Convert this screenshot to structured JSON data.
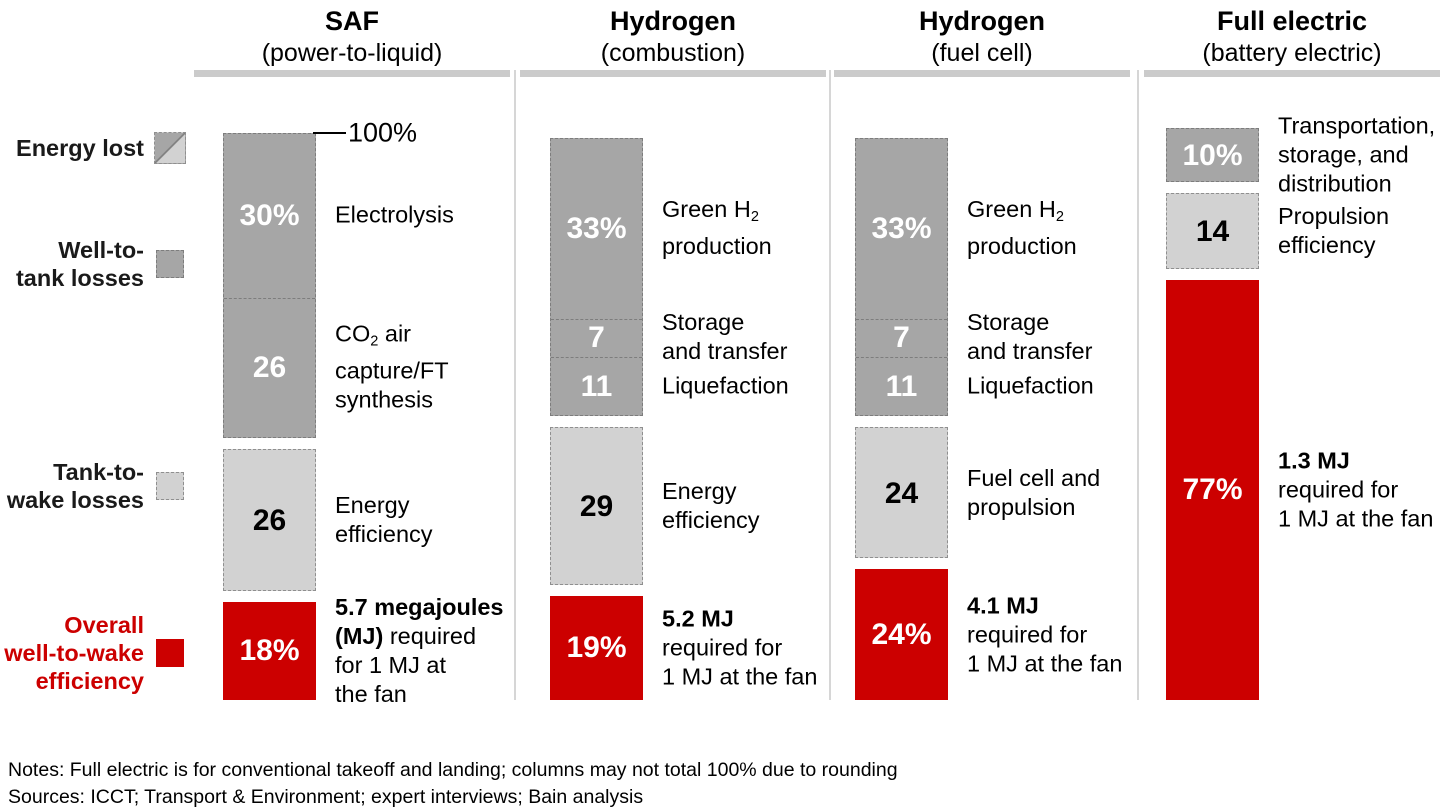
{
  "colors": {
    "well_to_tank_gray": "#a6a6a6",
    "tank_to_wake_gray": "#d2d2d2",
    "overall_red": "#cc0000",
    "header_rule_gray": "#cbcbcb",
    "divider_gray": "#d6d6d6"
  },
  "legend": [
    {
      "name": "energy-lost",
      "swatch": "split",
      "lines": [
        "Energy lost"
      ]
    },
    {
      "name": "well-to-tank-losses",
      "swatch": "dark",
      "lines": [
        "Well-to-",
        "tank losses"
      ]
    },
    {
      "name": "tank-to-wake-losses",
      "swatch": "light",
      "lines": [
        "Tank-to-",
        "wake losses"
      ]
    },
    {
      "name": "overall-well-to-wake-efficiency",
      "swatch": "red",
      "red_text": true,
      "lines": [
        "Overall",
        "well-to-wake",
        "efficiency"
      ]
    }
  ],
  "chart_data": {
    "type": "bar",
    "subtype": "stacked-energy-loss-waterfall",
    "unit": "% of input energy (columns read top to bottom from 100%)",
    "annotation_100": "100%",
    "legend_roles": [
      "Energy lost",
      "Well-to-tank losses",
      "Tank-to-wake losses",
      "Overall well-to-wake efficiency"
    ],
    "columns": [
      {
        "title": "SAF",
        "subtitle": "(power-to-liquid)",
        "show_100_marker": true,
        "groups": [
          {
            "role": "well-to-tank",
            "segments": [
              {
                "value": 30,
                "value_label": "30%",
                "label_lines": [
                  [
                    {
                      "t": "Electrolysis"
                    }
                  ]
                ]
              },
              {
                "value": 26,
                "value_label": "26",
                "label_lines": [
                  [
                    {
                      "t": "CO"
                    },
                    {
                      "t": "2",
                      "sub": true
                    },
                    {
                      "t": " air"
                    }
                  ],
                  [
                    {
                      "t": "capture/FT"
                    }
                  ],
                  [
                    {
                      "t": "synthesis"
                    }
                  ]
                ]
              }
            ]
          },
          {
            "role": "tank-to-wake",
            "segments": [
              {
                "value": 26,
                "value_label": "26",
                "label_lines": [
                  [
                    {
                      "t": "Energy"
                    }
                  ],
                  [
                    {
                      "t": "efficiency"
                    }
                  ]
                ]
              }
            ]
          },
          {
            "role": "overall",
            "segments": [
              {
                "value": 18,
                "value_label": "18%",
                "label_lines": [
                  [
                    {
                      "t": "5.7 megajoules",
                      "b": true
                    }
                  ],
                  [
                    {
                      "t": "(MJ)",
                      "b": true
                    },
                    {
                      "t": " required"
                    }
                  ],
                  [
                    {
                      "t": "for 1 MJ at"
                    }
                  ],
                  [
                    {
                      "t": "the fan"
                    }
                  ]
                ]
              }
            ]
          }
        ]
      },
      {
        "title": "Hydrogen",
        "subtitle": "(combustion)",
        "show_100_marker": false,
        "groups": [
          {
            "role": "well-to-tank",
            "segments": [
              {
                "value": 33,
                "value_label": "33%",
                "label_lines": [
                  [
                    {
                      "t": "Green H"
                    },
                    {
                      "t": "2",
                      "sub": true
                    }
                  ],
                  [
                    {
                      "t": "production"
                    }
                  ]
                ]
              },
              {
                "value": 7,
                "value_label": "7",
                "label_lines": [
                  [
                    {
                      "t": "Storage"
                    }
                  ],
                  [
                    {
                      "t": "and transfer"
                    }
                  ]
                ]
              },
              {
                "value": 11,
                "value_label": "11",
                "label_lines": [
                  [
                    {
                      "t": "Liquefaction"
                    }
                  ]
                ]
              }
            ]
          },
          {
            "role": "tank-to-wake",
            "segments": [
              {
                "value": 29,
                "value_label": "29",
                "label_lines": [
                  [
                    {
                      "t": "Energy"
                    }
                  ],
                  [
                    {
                      "t": "efficiency"
                    }
                  ]
                ]
              }
            ]
          },
          {
            "role": "overall",
            "segments": [
              {
                "value": 19,
                "value_label": "19%",
                "label_lines": [
                  [
                    {
                      "t": "5.2 MJ",
                      "b": true
                    }
                  ],
                  [
                    {
                      "t": "required for"
                    }
                  ],
                  [
                    {
                      "t": "1 MJ at the fan"
                    }
                  ]
                ]
              }
            ]
          }
        ]
      },
      {
        "title": "Hydrogen",
        "subtitle": "(fuel cell)",
        "show_100_marker": false,
        "groups": [
          {
            "role": "well-to-tank",
            "segments": [
              {
                "value": 33,
                "value_label": "33%",
                "label_lines": [
                  [
                    {
                      "t": "Green H"
                    },
                    {
                      "t": "2",
                      "sub": true
                    }
                  ],
                  [
                    {
                      "t": "production"
                    }
                  ]
                ]
              },
              {
                "value": 7,
                "value_label": "7",
                "label_lines": [
                  [
                    {
                      "t": "Storage"
                    }
                  ],
                  [
                    {
                      "t": "and transfer"
                    }
                  ]
                ]
              },
              {
                "value": 11,
                "value_label": "11",
                "label_lines": [
                  [
                    {
                      "t": "Liquefaction"
                    }
                  ]
                ]
              }
            ]
          },
          {
            "role": "tank-to-wake",
            "segments": [
              {
                "value": 24,
                "value_label": "24",
                "label_lines": [
                  [
                    {
                      "t": "Fuel cell and"
                    }
                  ],
                  [
                    {
                      "t": "propulsion"
                    }
                  ]
                ]
              }
            ]
          },
          {
            "role": "overall",
            "segments": [
              {
                "value": 24,
                "value_label": "24%",
                "label_lines": [
                  [
                    {
                      "t": "4.1 MJ",
                      "b": true
                    }
                  ],
                  [
                    {
                      "t": "required for"
                    }
                  ],
                  [
                    {
                      "t": "1 MJ at the fan"
                    }
                  ]
                ]
              }
            ]
          }
        ]
      },
      {
        "title": "Full electric",
        "subtitle": "(battery electric)",
        "show_100_marker": false,
        "groups": [
          {
            "role": "well-to-tank",
            "segments": [
              {
                "value": 10,
                "value_label": "10%",
                "label_lines": [
                  [
                    {
                      "t": "Transportation,"
                    }
                  ],
                  [
                    {
                      "t": "storage, and"
                    }
                  ],
                  [
                    {
                      "t": "distribution"
                    }
                  ]
                ]
              }
            ]
          },
          {
            "role": "tank-to-wake",
            "segments": [
              {
                "value": 14,
                "value_label": "14",
                "label_lines": [
                  [
                    {
                      "t": "Propulsion"
                    }
                  ],
                  [
                    {
                      "t": "efficiency"
                    }
                  ]
                ]
              }
            ]
          },
          {
            "role": "overall",
            "segments": [
              {
                "value": 77,
                "value_label": "77%",
                "label_lines": [
                  [
                    {
                      "t": "1.3 MJ",
                      "b": true
                    }
                  ],
                  [
                    {
                      "t": "required for"
                    }
                  ],
                  [
                    {
                      "t": "1 MJ at the fan"
                    }
                  ]
                ]
              }
            ]
          }
        ]
      }
    ]
  },
  "notes": "Notes: Full electric is for conventional takeoff and landing; columns may not total 100% due to rounding",
  "sources": "Sources: ICCT; Transport & Environment; expert interviews; Bain analysis"
}
